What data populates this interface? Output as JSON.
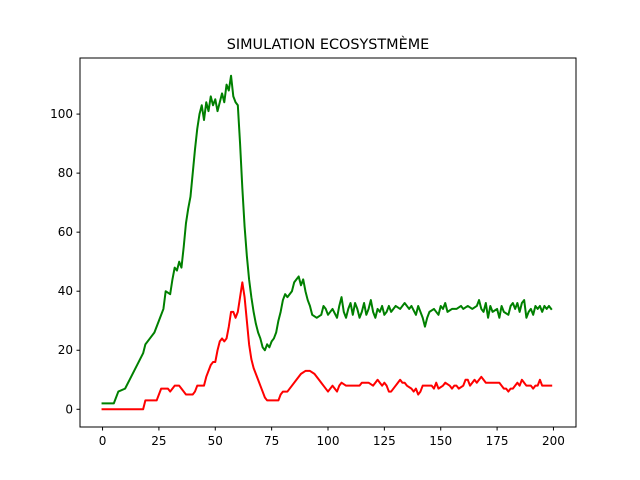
{
  "chart_data": {
    "type": "line",
    "title": "SIMULATION ECOSYSTMÈME",
    "xlabel": "",
    "ylabel": "",
    "xlim": [
      -10,
      210
    ],
    "ylim": [
      -6,
      119
    ],
    "grid": false,
    "x_ticks": [
      0,
      25,
      50,
      75,
      100,
      125,
      150,
      175,
      200
    ],
    "y_ticks": [
      0,
      20,
      40,
      60,
      80,
      100
    ],
    "series": [
      {
        "color": "#008000",
        "points": [
          [
            0,
            2
          ],
          [
            5,
            2
          ],
          [
            7,
            6
          ],
          [
            10,
            7
          ],
          [
            12,
            10
          ],
          [
            14,
            13
          ],
          [
            16,
            16
          ],
          [
            18,
            19
          ],
          [
            19,
            22
          ],
          [
            21,
            24
          ],
          [
            23,
            26
          ],
          [
            25,
            30
          ],
          [
            27,
            34
          ],
          [
            28,
            40
          ],
          [
            30,
            39
          ],
          [
            31,
            44
          ],
          [
            32,
            48
          ],
          [
            33,
            47
          ],
          [
            34,
            50
          ],
          [
            35,
            48
          ],
          [
            36,
            55
          ],
          [
            37,
            63
          ],
          [
            38,
            68
          ],
          [
            39,
            72
          ],
          [
            40,
            80
          ],
          [
            41,
            88
          ],
          [
            42,
            95
          ],
          [
            43,
            100
          ],
          [
            44,
            103
          ],
          [
            45,
            98
          ],
          [
            46,
            104
          ],
          [
            47,
            101
          ],
          [
            48,
            106
          ],
          [
            49,
            103
          ],
          [
            50,
            105
          ],
          [
            51,
            101
          ],
          [
            52,
            104
          ],
          [
            53,
            107
          ],
          [
            54,
            104
          ],
          [
            55,
            110
          ],
          [
            56,
            108
          ],
          [
            57,
            113
          ],
          [
            58,
            106
          ],
          [
            59,
            104
          ],
          [
            60,
            103
          ],
          [
            61,
            90
          ],
          [
            62,
            75
          ],
          [
            63,
            62
          ],
          [
            64,
            52
          ],
          [
            65,
            44
          ],
          [
            66,
            38
          ],
          [
            67,
            33
          ],
          [
            68,
            29
          ],
          [
            69,
            26
          ],
          [
            70,
            24
          ],
          [
            71,
            21
          ],
          [
            72,
            20
          ],
          [
            73,
            22
          ],
          [
            74,
            21
          ],
          [
            75,
            23
          ],
          [
            76,
            24
          ],
          [
            77,
            26
          ],
          [
            78,
            30
          ],
          [
            79,
            33
          ],
          [
            80,
            37
          ],
          [
            81,
            39
          ],
          [
            82,
            38
          ],
          [
            84,
            40
          ],
          [
            85,
            43
          ],
          [
            86,
            44
          ],
          [
            87,
            45
          ],
          [
            88,
            42
          ],
          [
            89,
            44
          ],
          [
            90,
            40
          ],
          [
            91,
            37
          ],
          [
            92,
            35
          ],
          [
            93,
            32
          ],
          [
            95,
            31
          ],
          [
            97,
            32
          ],
          [
            98,
            35
          ],
          [
            99,
            34
          ],
          [
            100,
            32
          ],
          [
            102,
            34
          ],
          [
            104,
            31
          ],
          [
            105,
            35
          ],
          [
            106,
            38
          ],
          [
            107,
            33
          ],
          [
            108,
            31
          ],
          [
            109,
            34
          ],
          [
            110,
            36
          ],
          [
            111,
            32
          ],
          [
            112,
            36
          ],
          [
            113,
            34
          ],
          [
            114,
            31
          ],
          [
            115,
            33
          ],
          [
            116,
            36
          ],
          [
            117,
            32
          ],
          [
            118,
            34
          ],
          [
            119,
            37
          ],
          [
            120,
            33
          ],
          [
            121,
            31
          ],
          [
            122,
            34
          ],
          [
            123,
            33
          ],
          [
            124,
            35
          ],
          [
            125,
            32
          ],
          [
            126,
            33
          ],
          [
            127,
            35
          ],
          [
            128,
            33
          ],
          [
            130,
            35
          ],
          [
            132,
            34
          ],
          [
            134,
            36
          ],
          [
            136,
            34
          ],
          [
            137,
            35
          ],
          [
            139,
            32
          ],
          [
            140,
            35
          ],
          [
            141,
            33
          ],
          [
            142,
            31
          ],
          [
            143,
            28
          ],
          [
            144,
            31
          ],
          [
            145,
            33
          ],
          [
            147,
            34
          ],
          [
            149,
            32
          ],
          [
            150,
            35
          ],
          [
            151,
            34
          ],
          [
            152,
            36
          ],
          [
            153,
            33
          ],
          [
            155,
            34
          ],
          [
            157,
            34
          ],
          [
            159,
            35
          ],
          [
            160,
            34
          ],
          [
            162,
            35
          ],
          [
            164,
            34
          ],
          [
            166,
            35
          ],
          [
            167,
            37
          ],
          [
            168,
            34
          ],
          [
            169,
            33
          ],
          [
            170,
            36
          ],
          [
            171,
            31
          ],
          [
            172,
            35
          ],
          [
            173,
            33
          ],
          [
            175,
            34
          ],
          [
            176,
            31
          ],
          [
            177,
            35
          ],
          [
            178,
            33
          ],
          [
            180,
            32
          ],
          [
            181,
            35
          ],
          [
            182,
            36
          ],
          [
            183,
            34
          ],
          [
            184,
            36
          ],
          [
            185,
            33
          ],
          [
            186,
            36
          ],
          [
            187,
            37
          ],
          [
            188,
            31
          ],
          [
            189,
            33
          ],
          [
            190,
            34
          ],
          [
            191,
            32
          ],
          [
            192,
            35
          ],
          [
            193,
            34
          ],
          [
            194,
            35
          ],
          [
            195,
            33
          ],
          [
            196,
            35
          ],
          [
            197,
            34
          ],
          [
            198,
            35
          ],
          [
            199,
            34
          ]
        ]
      },
      {
        "color": "#ff0000",
        "points": [
          [
            0,
            0
          ],
          [
            18,
            0
          ],
          [
            19,
            3
          ],
          [
            24,
            3
          ],
          [
            25,
            5
          ],
          [
            26,
            7
          ],
          [
            29,
            7
          ],
          [
            30,
            6
          ],
          [
            31,
            7
          ],
          [
            32,
            8
          ],
          [
            33,
            8
          ],
          [
            34,
            8
          ],
          [
            35,
            7
          ],
          [
            36,
            6
          ],
          [
            37,
            5
          ],
          [
            38,
            5
          ],
          [
            40,
            5
          ],
          [
            41,
            6
          ],
          [
            42,
            8
          ],
          [
            45,
            8
          ],
          [
            46,
            11
          ],
          [
            47,
            13
          ],
          [
            48,
            15
          ],
          [
            49,
            16
          ],
          [
            50,
            16
          ],
          [
            51,
            20
          ],
          [
            52,
            23
          ],
          [
            53,
            24
          ],
          [
            54,
            23
          ],
          [
            55,
            24
          ],
          [
            56,
            28
          ],
          [
            57,
            33
          ],
          [
            58,
            33
          ],
          [
            59,
            31
          ],
          [
            60,
            33
          ],
          [
            61,
            38
          ],
          [
            62,
            43
          ],
          [
            63,
            38
          ],
          [
            64,
            30
          ],
          [
            65,
            22
          ],
          [
            66,
            17
          ],
          [
            67,
            14
          ],
          [
            68,
            12
          ],
          [
            69,
            10
          ],
          [
            70,
            8
          ],
          [
            71,
            6
          ],
          [
            72,
            4
          ],
          [
            73,
            3
          ],
          [
            74,
            3
          ],
          [
            78,
            3
          ],
          [
            79,
            5
          ],
          [
            80,
            6
          ],
          [
            82,
            6
          ],
          [
            84,
            8
          ],
          [
            86,
            10
          ],
          [
            88,
            12
          ],
          [
            90,
            13
          ],
          [
            92,
            13
          ],
          [
            94,
            12
          ],
          [
            96,
            10
          ],
          [
            97,
            9
          ],
          [
            98,
            8
          ],
          [
            100,
            6
          ],
          [
            102,
            8
          ],
          [
            103,
            7
          ],
          [
            104,
            6
          ],
          [
            105,
            8
          ],
          [
            106,
            9
          ],
          [
            108,
            8
          ],
          [
            110,
            8
          ],
          [
            112,
            8
          ],
          [
            114,
            8
          ],
          [
            115,
            9
          ],
          [
            118,
            9
          ],
          [
            120,
            8
          ],
          [
            121,
            9
          ],
          [
            122,
            10
          ],
          [
            123,
            9
          ],
          [
            124,
            8
          ],
          [
            125,
            9
          ],
          [
            126,
            8
          ],
          [
            127,
            6
          ],
          [
            128,
            6
          ],
          [
            130,
            8
          ],
          [
            131,
            9
          ],
          [
            132,
            10
          ],
          [
            133,
            9
          ],
          [
            134,
            9
          ],
          [
            135,
            8
          ],
          [
            137,
            7
          ],
          [
            138,
            6
          ],
          [
            139,
            7
          ],
          [
            140,
            5
          ],
          [
            141,
            6
          ],
          [
            142,
            8
          ],
          [
            146,
            8
          ],
          [
            147,
            7
          ],
          [
            148,
            9
          ],
          [
            149,
            7
          ],
          [
            151,
            8
          ],
          [
            152,
            9
          ],
          [
            154,
            8
          ],
          [
            155,
            7
          ],
          [
            156,
            8
          ],
          [
            157,
            8
          ],
          [
            158,
            7
          ],
          [
            160,
            8
          ],
          [
            161,
            10
          ],
          [
            162,
            10
          ],
          [
            163,
            8
          ],
          [
            164,
            9
          ],
          [
            165,
            10
          ],
          [
            166,
            9
          ],
          [
            167,
            10
          ],
          [
            168,
            11
          ],
          [
            169,
            10
          ],
          [
            170,
            9
          ],
          [
            172,
            9
          ],
          [
            176,
            9
          ],
          [
            177,
            8
          ],
          [
            178,
            7
          ],
          [
            179,
            7
          ],
          [
            180,
            6
          ],
          [
            181,
            7
          ],
          [
            182,
            7
          ],
          [
            183,
            8
          ],
          [
            184,
            9
          ],
          [
            185,
            8
          ],
          [
            186,
            10
          ],
          [
            187,
            9
          ],
          [
            188,
            8
          ],
          [
            190,
            8
          ],
          [
            191,
            7
          ],
          [
            192,
            8
          ],
          [
            193,
            8
          ],
          [
            194,
            10
          ],
          [
            195,
            8
          ],
          [
            196,
            8
          ],
          [
            197,
            8
          ],
          [
            199,
            8
          ]
        ]
      }
    ]
  }
}
